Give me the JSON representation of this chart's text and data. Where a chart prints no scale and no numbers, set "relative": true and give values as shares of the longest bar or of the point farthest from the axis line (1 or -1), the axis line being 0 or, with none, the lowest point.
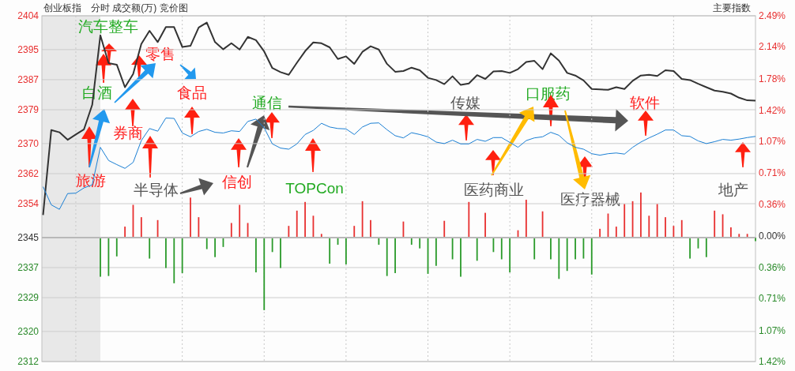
{
  "chart_data": [
    {
      "type": "line",
      "title": "创业板指",
      "subtitle": "分时 成交额(万) 竞价图",
      "categories": [
        null,
        null,
        null,
        null,
        null,
        null,
        null,
        null,
        null,
        null,
        null,
        null,
        null,
        null,
        null,
        null,
        null,
        null,
        null,
        null,
        null,
        null,
        null,
        null,
        null,
        null,
        null,
        null,
        null,
        null,
        null,
        null,
        null,
        null,
        null,
        null,
        null,
        null,
        null,
        null,
        null,
        null,
        null,
        null,
        null,
        null,
        null,
        null,
        null,
        null,
        null,
        null,
        null,
        null,
        null,
        null,
        null,
        null,
        null,
        null,
        null,
        null,
        null,
        null,
        null,
        null,
        null,
        null,
        null,
        null,
        null,
        null,
        null,
        null,
        null,
        null,
        null,
        null,
        null,
        null,
        null,
        null,
        null,
        null,
        null,
        null,
        null,
        null
      ],
      "ylim": [
        2312,
        2404
      ],
      "yticks": [
        2312,
        2320,
        2329,
        2337,
        2345,
        2354,
        2362,
        2370,
        2379,
        2387,
        2395,
        2404
      ],
      "y2lim": [
        -1.42,
        2.49
      ],
      "y2ticks": [
        {
          "value": -1.42,
          "label": "1.42%"
        },
        {
          "value": -1.07,
          "label": "1.07%"
        },
        {
          "value": -0.71,
          "label": "0.71%"
        },
        {
          "value": -0.36,
          "label": "0.36%"
        },
        "0.00%",
        {
          "value": 0.36,
          "label": "0.36%"
        },
        {
          "value": 0.71,
          "label": "0.71%"
        },
        {
          "value": 1.07,
          "label": "1.07%"
        },
        {
          "value": 1.42,
          "label": "1.42%"
        },
        {
          "value": 1.78,
          "label": "1.78%"
        },
        {
          "value": 2.14,
          "label": "2.14%"
        },
        {
          "value": 2.49,
          "label": "2.49%"
        }
      ],
      "grid": true,
      "series": [
        {
          "color": "#333333",
          "values": [
            2351,
            2373.6,
            2373,
            2371,
            2372.4,
            2373.8,
            2380.3,
            2398.8,
            2391.4,
            2391,
            2385,
            2388.5,
            2396.5,
            2400,
            2397,
            2401,
            2401,
            2395.7,
            2396,
            2400.9,
            2402.2,
            2397,
            2395.1,
            2396.7,
            2395,
            2398.4,
            2397.5,
            2394.5,
            2390.1,
            2389,
            2388.3,
            2391.5,
            2394.6,
            2396.9,
            2396.7,
            2395.6,
            2392.5,
            2393.2,
            2391.2,
            2394.4,
            2395.9,
            2395,
            2391.2,
            2389.1,
            2389.3,
            2390.2,
            2389.5,
            2387.5,
            2386.9,
            2385.8,
            2387.9,
            2385.6,
            2386,
            2388.2,
            2387.2,
            2389.2,
            2389.3,
            2388.8,
            2389.8,
            2391.7,
            2392,
            2389.8,
            2394,
            2392.1,
            2388.8,
            2388.1,
            2386.8,
            2384.5,
            2384.4,
            2384.3,
            2385,
            2384.5,
            2386.7,
            2388.1,
            2388.3,
            2388,
            2389.5,
            2389.3,
            2387.2,
            2386.9,
            2385.9,
            2385,
            2384.1,
            2383.8,
            2383.3,
            2382.2,
            2381.5,
            2381.4
          ]
        },
        {
          "color": "#1a7fd4",
          "values": [
            2358.5,
            2353.7,
            2352.5,
            2356.7,
            2356.8,
            2358.2,
            2359,
            2369,
            2365.5,
            2364.4,
            2363.4,
            2365,
            2370.8,
            2374,
            2373.3,
            2376.8,
            2376.7,
            2372.8,
            2371.8,
            2373.2,
            2373.8,
            2373,
            2372.8,
            2373.4,
            2373.2,
            2375.9,
            2376.5,
            2374.2,
            2369.9,
            2368.8,
            2368.5,
            2369.9,
            2372.4,
            2373.5,
            2375.4,
            2374.4,
            2374,
            2373.9,
            2372.4,
            2374.4,
            2375.4,
            2375.5,
            2373.7,
            2372.1,
            2371.5,
            2372.9,
            2372.4,
            2371.8,
            2370.4,
            2370,
            2370.9,
            2369.9,
            2369.9,
            2371.1,
            2370.6,
            2371.6,
            2371.6,
            2370.3,
            2369,
            2370.8,
            2371.5,
            2371.8,
            2373,
            2372.2,
            2370.2,
            2369,
            2368.5,
            2367.3,
            2366.9,
            2367.3,
            2367.5,
            2367.2,
            2369,
            2370.4,
            2371.5,
            2372.5,
            2373.6,
            2373.6,
            2372.1,
            2371.9,
            2370.7,
            2370,
            2370.5,
            2371.1,
            2370.9,
            2371.2,
            2371.6,
            2371.9
          ]
        }
      ],
      "annotations": [
        "汽车整车",
        "零售",
        "白酒",
        "食品",
        "通信",
        "传媒",
        "口服药",
        "软件",
        "券商",
        "旅游",
        "半导体",
        "信创",
        "TOPCon",
        "医药商业",
        "医疗器械",
        "地产",
        "主要指数"
      ]
    },
    {
      "type": "bar",
      "relative": true,
      "categories": [
        null,
        null,
        null,
        null,
        null,
        null,
        null,
        null,
        null,
        null,
        null,
        null,
        null,
        null,
        null,
        null,
        null,
        null,
        null,
        null,
        null,
        null,
        null,
        null,
        null,
        null,
        null,
        null,
        null,
        null,
        null,
        null,
        null,
        null,
        null,
        null,
        null,
        null,
        null,
        null,
        null,
        null,
        null,
        null,
        null,
        null,
        null,
        null,
        null,
        null,
        null,
        null,
        null,
        null,
        null,
        null,
        null,
        null,
        null,
        null,
        null,
        null,
        null,
        null,
        null,
        null,
        null,
        null,
        null,
        null,
        null,
        null,
        null,
        null,
        null,
        null,
        null,
        null,
        null,
        null,
        null,
        null,
        null,
        null,
        null,
        null,
        null,
        null
      ],
      "values": [
        null,
        null,
        null,
        null,
        null,
        null,
        null,
        -0.54,
        -0.53,
        -0.26,
        0.15,
        0.45,
        0.28,
        -0.29,
        0.24,
        -0.42,
        -0.63,
        -0.49,
        0.55,
        0.28,
        -0.16,
        -0.27,
        -0.13,
        0.2,
        0.45,
        0.2,
        -0.48,
        -1.0,
        -0.2,
        -0.42,
        0.16,
        0.37,
        0.49,
        0.3,
        0.05,
        -0.36,
        -0.1,
        -0.37,
        0.16,
        0.5,
        0.24,
        -0.1,
        -0.53,
        -0.49,
        0.22,
        -0.1,
        -0.15,
        -0.5,
        -0.39,
        0.23,
        -0.3,
        -0.54,
        0.49,
        -0.32,
        0.34,
        -0.2,
        -0.3,
        -0.48,
        0.1,
        0.52,
        -0.3,
        0.36,
        -0.3,
        -0.57,
        -0.46,
        -0.3,
        -0.29,
        -0.51,
        0.12,
        0.33,
        0.15,
        0.46,
        0.5,
        0.62,
        0.3,
        0.46,
        0.28,
        0.16,
        0.24,
        -0.29,
        -0.15,
        -0.27,
        0.37,
        0.32,
        0.14,
        0.05,
        0.05,
        -0.05
      ],
      "colors": [
        null,
        null,
        null,
        null,
        null,
        null,
        null,
        "#2a9a2a",
        "#2a9a2a",
        "#2a9a2a",
        "#e83030",
        "#e83030",
        "#e83030",
        "#2a9a2a",
        "#e83030",
        "#2a9a2a",
        "#2a9a2a",
        "#2a9a2a",
        "#e83030",
        "#e83030",
        "#2a9a2a",
        "#2a9a2a",
        "#2a9a2a",
        "#e83030",
        "#e83030",
        "#e83030",
        "#2a9a2a",
        "#2a9a2a",
        "#2a9a2a",
        "#2a9a2a",
        "#e83030",
        "#e83030",
        "#e83030",
        "#e83030",
        "#e83030",
        "#2a9a2a",
        "#2a9a2a",
        "#2a9a2a",
        "#e83030",
        "#e83030",
        "#e83030",
        "#2a9a2a",
        "#2a9a2a",
        "#2a9a2a",
        "#e83030",
        "#2a9a2a",
        "#2a9a2a",
        "#2a9a2a",
        "#2a9a2a",
        "#e83030",
        "#2a9a2a",
        "#2a9a2a",
        "#e83030",
        "#2a9a2a",
        "#e83030",
        "#2a9a2a",
        "#2a9a2a",
        "#2a9a2a",
        "#e83030",
        "#e83030",
        "#2a9a2a",
        "#e83030",
        "#2a9a2a",
        "#2a9a2a",
        "#2a9a2a",
        "#2a9a2a",
        "#2a9a2a",
        "#2a9a2a",
        "#e83030",
        "#e83030",
        "#e83030",
        "#e83030",
        "#e83030",
        "#e83030",
        "#e83030",
        "#e83030",
        "#e83030",
        "#e83030",
        "#e83030",
        "#2a9a2a",
        "#2a9a2a",
        "#2a9a2a",
        "#e83030",
        "#e83030",
        "#e83030",
        "#e83030",
        "#e83030",
        "#2a9a2a"
      ]
    }
  ]
}
